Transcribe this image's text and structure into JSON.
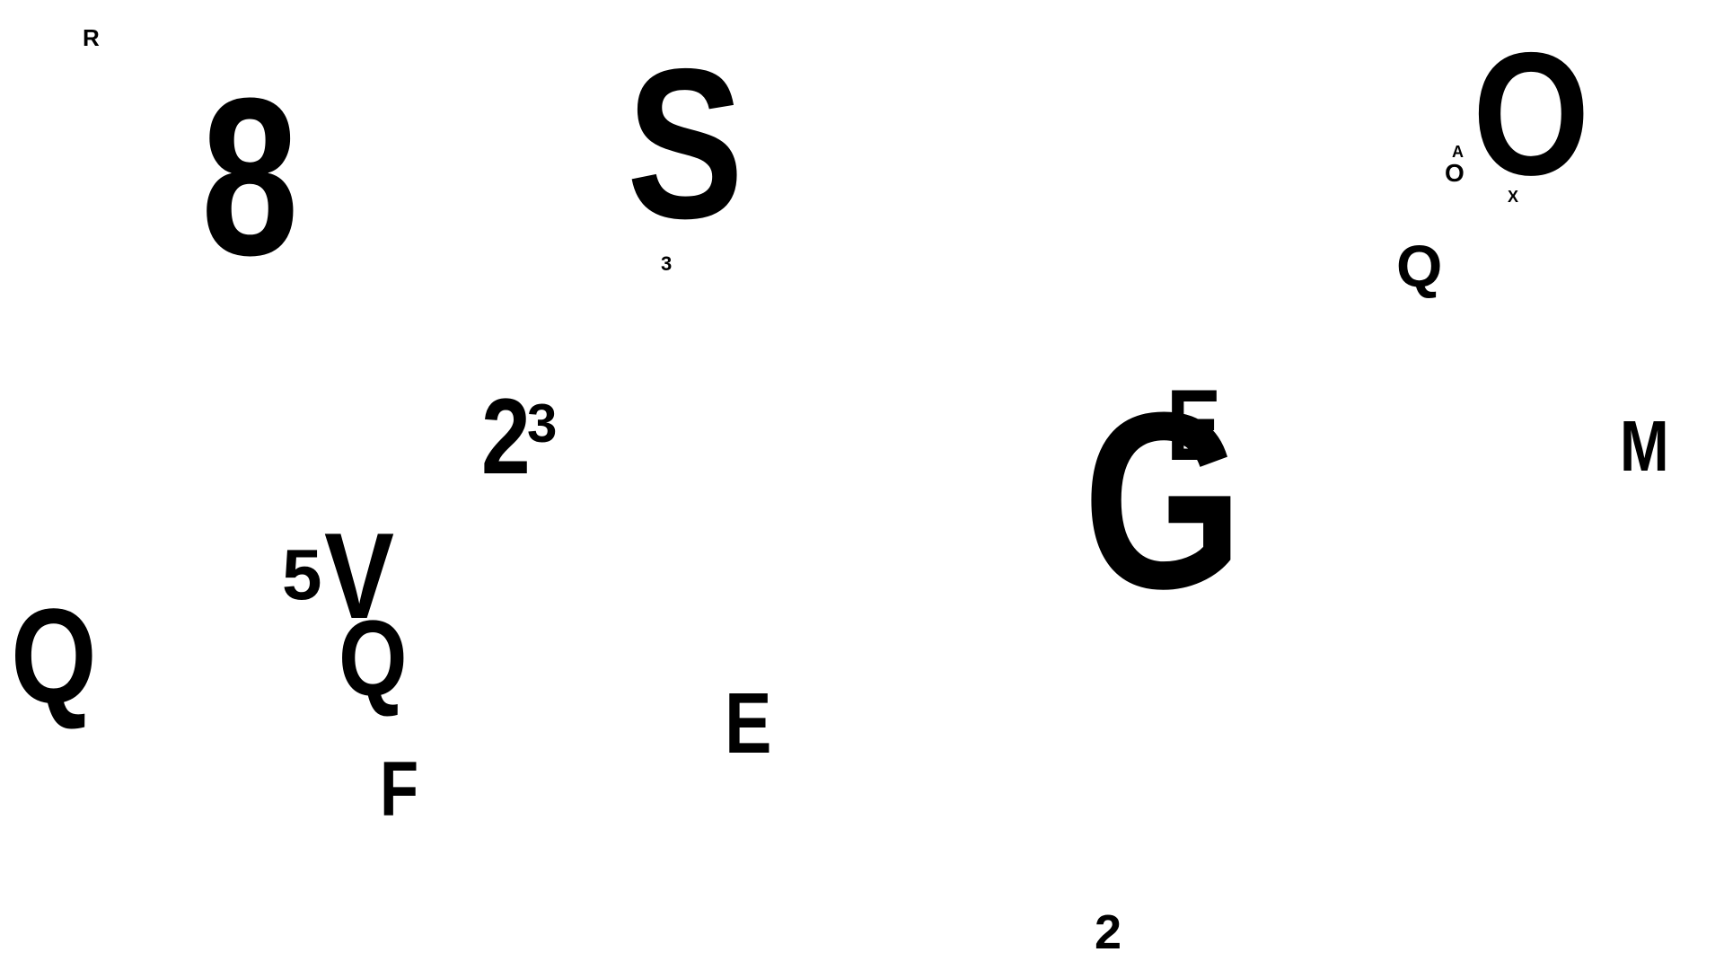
{
  "background_color": "#ffffff",
  "text_color": "#000000",
  "glyphs": {
    "r": "R",
    "eight": "8",
    "s": "S",
    "three_small": "3",
    "o_large": "O",
    "a_tiny": "A",
    "o_small": "O",
    "x_tiny": "X",
    "q_upper_right": "Q",
    "two_mid": "2",
    "three_mid": "3",
    "g_large": "G",
    "e_overlap": "E",
    "m": "M",
    "five": "5",
    "v": "V",
    "q_mid": "Q",
    "q_left": "Q",
    "e_lower": "E",
    "f": "F",
    "two_bottom": "2"
  }
}
